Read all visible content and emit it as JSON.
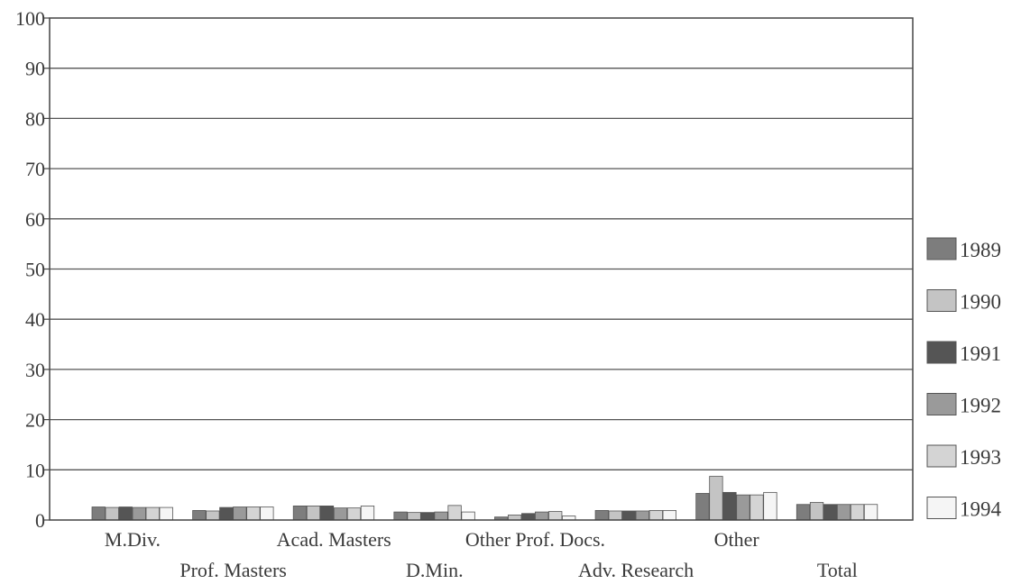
{
  "chart_data": {
    "type": "bar",
    "title": "",
    "xlabel": "",
    "ylabel": "",
    "ylim": [
      0,
      100
    ],
    "yticks": [
      0,
      10,
      20,
      30,
      40,
      50,
      60,
      70,
      80,
      90,
      100
    ],
    "grid": true,
    "legend_position": "right",
    "categories": [
      "M.Div.",
      "Prof. Masters",
      "Acad. Masters",
      "D.Min.",
      "Other Prof. Docs.",
      "Adv. Research",
      "Other",
      "Total"
    ],
    "series": [
      {
        "name": "1989",
        "color": "#7d7d7d",
        "values": [
          2.6,
          1.9,
          2.8,
          1.6,
          0.6,
          1.9,
          5.3,
          3.1
        ]
      },
      {
        "name": "1990",
        "color": "#c4c4c4",
        "values": [
          2.5,
          1.8,
          2.8,
          1.5,
          1.0,
          1.8,
          8.7,
          3.5
        ]
      },
      {
        "name": "1991",
        "color": "#555555",
        "values": [
          2.6,
          2.5,
          2.8,
          1.5,
          1.3,
          1.8,
          5.5,
          3.1
        ]
      },
      {
        "name": "1992",
        "color": "#9a9a9a",
        "values": [
          2.5,
          2.6,
          2.4,
          1.6,
          1.6,
          1.8,
          5.0,
          3.1
        ]
      },
      {
        "name": "1993",
        "color": "#d4d4d4",
        "values": [
          2.5,
          2.6,
          2.4,
          2.9,
          1.7,
          1.9,
          5.0,
          3.1
        ]
      },
      {
        "name": "1994",
        "color": "#f5f5f5",
        "values": [
          2.5,
          2.6,
          2.8,
          1.6,
          0.8,
          1.9,
          5.5,
          3.1
        ]
      }
    ]
  }
}
